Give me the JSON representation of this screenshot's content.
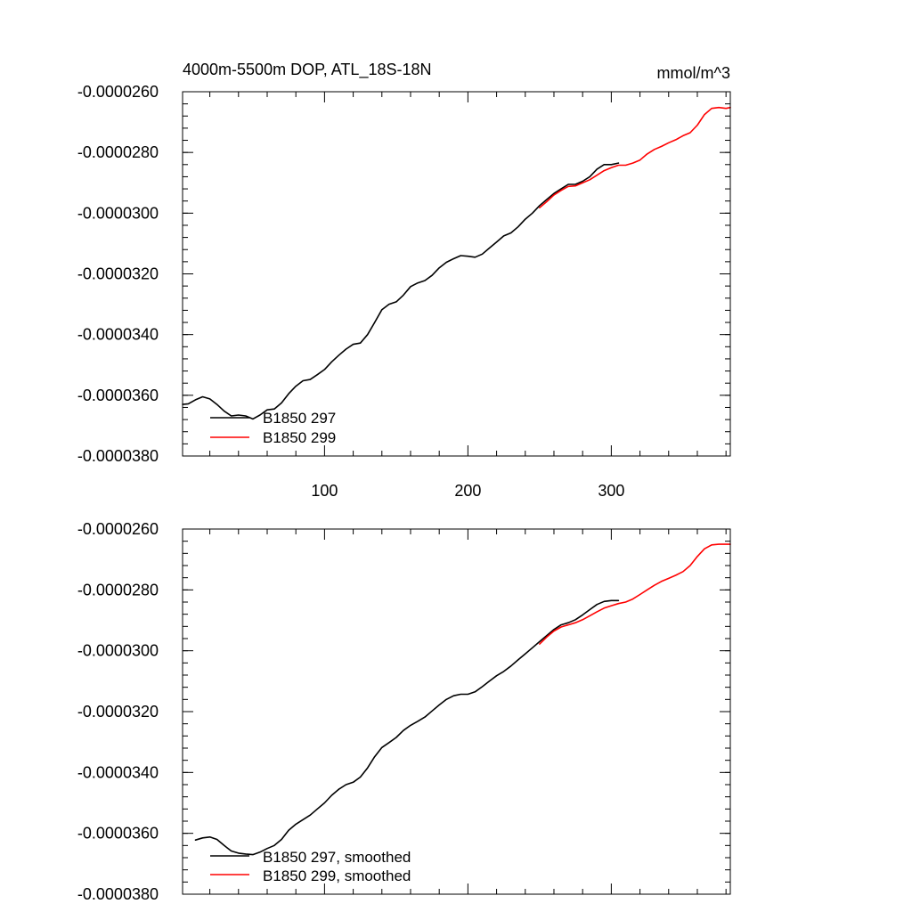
{
  "chart_data": [
    {
      "type": "line",
      "title": "4000m-5500m DOP, ATL_18S-18N",
      "units_label": "mmol/m^3",
      "xlabel": "",
      "ylabel": "",
      "xlim": [
        1,
        383
      ],
      "ylim": [
        -3.8e-05,
        -2.6e-05
      ],
      "x_ticks": [
        100,
        200,
        300
      ],
      "x_tick_labels": [
        "100",
        "200",
        "300"
      ],
      "y_ticks": [
        -2.6e-05,
        -2.8e-05,
        -3e-05,
        -3.2e-05,
        -3.4e-05,
        -3.6e-05,
        -3.8e-05
      ],
      "y_tick_labels": [
        "-0.0000260",
        "-0.0000280",
        "-0.0000300",
        "-0.0000320",
        "-0.0000340",
        "-0.0000360",
        "-0.0000380"
      ],
      "legend_position": "bottom-left",
      "series": [
        {
          "name": "B1850 297",
          "color": "#000000",
          "x": [
            1,
            5,
            10,
            15,
            20,
            25,
            30,
            35,
            40,
            45,
            50,
            55,
            60,
            65,
            70,
            75,
            80,
            85,
            90,
            95,
            100,
            105,
            110,
            115,
            120,
            125,
            130,
            135,
            140,
            145,
            150,
            155,
            160,
            165,
            170,
            175,
            180,
            185,
            190,
            195,
            200,
            205,
            210,
            215,
            220,
            225,
            230,
            235,
            240,
            245,
            250,
            255,
            260,
            265,
            270,
            275,
            280,
            285,
            290,
            295,
            300,
            305
          ],
          "values": [
            -3.63e-05,
            -3.628e-05,
            -3.615e-05,
            -3.605e-05,
            -3.612e-05,
            -3.63e-05,
            -3.652e-05,
            -3.668e-05,
            -3.665e-05,
            -3.668e-05,
            -3.678e-05,
            -3.665e-05,
            -3.648e-05,
            -3.645e-05,
            -3.625e-05,
            -3.595e-05,
            -3.57e-05,
            -3.552e-05,
            -3.548e-05,
            -3.532e-05,
            -3.515e-05,
            -3.49e-05,
            -3.468e-05,
            -3.448e-05,
            -3.432e-05,
            -3.428e-05,
            -3.4e-05,
            -3.36e-05,
            -3.318e-05,
            -3.3e-05,
            -3.292e-05,
            -3.27e-05,
            -3.242e-05,
            -3.23e-05,
            -3.222e-05,
            -3.205e-05,
            -3.18e-05,
            -3.162e-05,
            -3.15e-05,
            -3.14e-05,
            -3.142e-05,
            -3.145e-05,
            -3.135e-05,
            -3.115e-05,
            -3.095e-05,
            -3.075e-05,
            -3.065e-05,
            -3.045e-05,
            -3.02e-05,
            -3e-05,
            -2.975e-05,
            -2.955e-05,
            -2.935e-05,
            -2.92e-05,
            -2.905e-05,
            -2.905e-05,
            -2.895e-05,
            -2.88e-05,
            -2.855e-05,
            -2.84e-05,
            -2.84e-05,
            -2.835e-05
          ]
        },
        {
          "name": "B1850 299",
          "color": "#ff0000",
          "x": [
            250,
            255,
            260,
            265,
            270,
            275,
            280,
            285,
            290,
            295,
            300,
            305,
            310,
            315,
            320,
            325,
            330,
            335,
            340,
            345,
            350,
            355,
            360,
            365,
            370,
            375,
            380,
            383
          ],
          "values": [
            -2.982e-05,
            -2.962e-05,
            -2.94e-05,
            -2.925e-05,
            -2.912e-05,
            -2.91e-05,
            -2.9e-05,
            -2.89e-05,
            -2.875e-05,
            -2.86e-05,
            -2.85e-05,
            -2.842e-05,
            -2.842e-05,
            -2.835e-05,
            -2.825e-05,
            -2.805e-05,
            -2.79e-05,
            -2.78e-05,
            -2.768e-05,
            -2.758e-05,
            -2.745e-05,
            -2.735e-05,
            -2.71e-05,
            -2.675e-05,
            -2.655e-05,
            -2.652e-05,
            -2.655e-05,
            -2.652e-05
          ]
        }
      ]
    },
    {
      "type": "line",
      "title": "",
      "xlabel": "",
      "ylabel": "",
      "xlim": [
        1,
        383
      ],
      "ylim": [
        -3.8e-05,
        -2.6e-05
      ],
      "x_ticks": [
        100,
        200,
        300
      ],
      "x_tick_labels": [],
      "y_ticks": [
        -2.6e-05,
        -2.8e-05,
        -3e-05,
        -3.2e-05,
        -3.4e-05,
        -3.6e-05,
        -3.8e-05
      ],
      "y_tick_labels": [
        "-0.0000260",
        "-0.0000280",
        "-0.0000300",
        "-0.0000320",
        "-0.0000340",
        "-0.0000360",
        "-0.0000380"
      ],
      "legend_position": "bottom-left",
      "series": [
        {
          "name": "B1850 297, smoothed",
          "color": "#000000",
          "x": [
            10,
            15,
            20,
            25,
            30,
            35,
            40,
            45,
            50,
            55,
            60,
            65,
            70,
            75,
            80,
            85,
            90,
            95,
            100,
            105,
            110,
            115,
            120,
            125,
            130,
            135,
            140,
            145,
            150,
            155,
            160,
            165,
            170,
            175,
            180,
            185,
            190,
            195,
            200,
            205,
            210,
            215,
            220,
            225,
            230,
            235,
            240,
            245,
            250,
            255,
            260,
            265,
            270,
            275,
            280,
            285,
            290,
            295,
            300,
            305
          ],
          "values": [
            -3.622e-05,
            -3.615e-05,
            -3.612e-05,
            -3.62e-05,
            -3.64e-05,
            -3.658e-05,
            -3.665e-05,
            -3.668e-05,
            -3.67e-05,
            -3.662e-05,
            -3.65e-05,
            -3.64e-05,
            -3.62e-05,
            -3.59e-05,
            -3.57e-05,
            -3.555e-05,
            -3.54e-05,
            -3.52e-05,
            -3.5e-05,
            -3.475e-05,
            -3.455e-05,
            -3.44e-05,
            -3.432e-05,
            -3.415e-05,
            -3.385e-05,
            -3.348e-05,
            -3.318e-05,
            -3.302e-05,
            -3.285e-05,
            -3.262e-05,
            -3.245e-05,
            -3.232e-05,
            -3.218e-05,
            -3.198e-05,
            -3.178e-05,
            -3.16e-05,
            -3.148e-05,
            -3.143e-05,
            -3.143e-05,
            -3.135e-05,
            -3.118e-05,
            -3.1e-05,
            -3.082e-05,
            -3.068e-05,
            -3.05e-05,
            -3.03e-05,
            -3.01e-05,
            -2.99e-05,
            -2.97e-05,
            -2.95e-05,
            -2.93e-05,
            -2.915e-05,
            -2.908e-05,
            -2.898e-05,
            -2.882e-05,
            -2.865e-05,
            -2.848e-05,
            -2.838e-05,
            -2.835e-05,
            -2.835e-05
          ]
        },
        {
          "name": "B1850 299, smoothed",
          "color": "#ff0000",
          "x": [
            250,
            255,
            260,
            265,
            270,
            275,
            280,
            285,
            290,
            295,
            300,
            305,
            310,
            315,
            320,
            325,
            330,
            335,
            340,
            345,
            350,
            355,
            360,
            365,
            370,
            375,
            380,
            383
          ],
          "values": [
            -2.978e-05,
            -2.955e-05,
            -2.935e-05,
            -2.922e-05,
            -2.915e-05,
            -2.908e-05,
            -2.898e-05,
            -2.885e-05,
            -2.872e-05,
            -2.86e-05,
            -2.852e-05,
            -2.845e-05,
            -2.84e-05,
            -2.83e-05,
            -2.815e-05,
            -2.8e-05,
            -2.785e-05,
            -2.772e-05,
            -2.762e-05,
            -2.752e-05,
            -2.74e-05,
            -2.72e-05,
            -2.69e-05,
            -2.665e-05,
            -2.652e-05,
            -2.65e-05,
            -2.65e-05,
            -2.65e-05
          ]
        }
      ]
    }
  ]
}
